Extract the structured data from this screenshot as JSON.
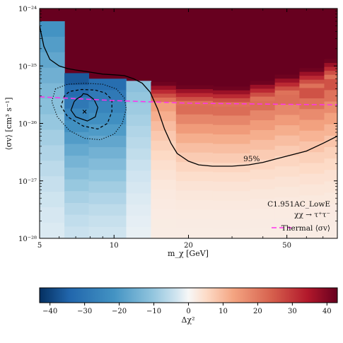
{
  "chart_data": [
    {
      "type": "heatmap",
      "title": "",
      "xlabel": "m_χ [GeV]",
      "ylabel": "⟨σv⟩ [cm³ s⁻¹]",
      "xscale": "log",
      "yscale": "log",
      "xlim": [
        5,
        80
      ],
      "ylim": [
        1e-28,
        1e-24
      ],
      "x_tick_labels": [
        "5",
        "10",
        "20",
        "50"
      ],
      "x_ticks": [
        5,
        10,
        20,
        50
      ],
      "y_tick_labels": [
        "10⁻²⁸",
        "10⁻²⁷",
        "10⁻²⁶",
        "10⁻²⁵",
        "10⁻²⁴"
      ],
      "y_ticks": [
        1e-28,
        1e-27,
        1e-26,
        1e-25,
        1e-24
      ],
      "grid": false,
      "mass_bins": [
        5,
        6.3,
        7.9,
        10,
        11.2,
        13.5,
        14.1,
        17.8,
        20,
        22.4,
        25.1,
        28.2,
        31.6,
        35.5,
        39.8,
        44.7,
        50.1,
        56.2,
        63.1,
        70.8,
        80
      ],
      "columns": [
        {
          "x0": 5.0,
          "x1": 6.3,
          "bright_top": 6e-25,
          "value_below": -22,
          "gradient": "blue"
        },
        {
          "x0": 6.3,
          "x1": 7.9,
          "bright_top": 7.5e-26,
          "value_below": -36,
          "gradient": "blue"
        },
        {
          "x0": 7.9,
          "x1": 11.2,
          "bright_top": 6e-26,
          "value_below": -32,
          "gradient": "blue"
        },
        {
          "x0": 11.2,
          "x1": 14.1,
          "bright_top": 5.5e-26,
          "value_below": -12,
          "gradient": "blue"
        },
        {
          "x0": 14.1,
          "x1": 17.8,
          "bright_top": 2.4e-26,
          "value_below": 3,
          "gradient": "red"
        },
        {
          "x0": 17.8,
          "x1": 25.1,
          "bright_top": 2.1e-26,
          "value_below": 5,
          "gradient": "red"
        },
        {
          "x0": 25.1,
          "x1": 35.5,
          "bright_top": 2e-26,
          "value_below": 5,
          "gradient": "red"
        },
        {
          "x0": 35.5,
          "x1": 44.7,
          "bright_top": 2.5e-26,
          "value_below": 5,
          "gradient": "red"
        },
        {
          "x0": 44.7,
          "x1": 56.2,
          "bright_top": 3.2e-26,
          "value_below": 5,
          "gradient": "red"
        },
        {
          "x0": 56.2,
          "x1": 70.8,
          "bright_top": 4.2e-26,
          "value_below": 6,
          "gradient": "red"
        },
        {
          "x0": 70.8,
          "x1": 80,
          "bright_top": 6e-26,
          "value_below": 6,
          "gradient": "red"
        }
      ],
      "limit_95": {
        "label": "95%",
        "x": [
          5.0,
          5.2,
          5.5,
          6.0,
          6.5,
          7.0,
          8.0,
          9.0,
          10.0,
          11.0,
          12.0,
          13.0,
          14.0,
          15.0,
          16.0,
          17.0,
          18.0,
          20.0,
          22.0,
          25.0,
          30.0,
          35.0,
          40.0,
          45.0,
          50.0,
          60.0,
          70.0,
          80.0
        ],
        "y": [
          5e-25,
          2.2e-25,
          1.3e-25,
          1e-25,
          9e-26,
          8.5e-26,
          7.8e-26,
          7.2e-26,
          7e-26,
          6.8e-26,
          6e-26,
          5e-26,
          3.5e-26,
          1.8e-26,
          8e-27,
          4.5e-27,
          3e-27,
          2.2e-27,
          1.9e-27,
          1.8e-27,
          1.8e-27,
          1.9e-27,
          2.1e-27,
          2.4e-27,
          2.7e-27,
          3.3e-27,
          4.5e-27,
          6e-27
        ]
      },
      "thermal": {
        "label": "Thermal ⟨σv⟩",
        "color": "#ff33ee",
        "x": [
          5,
          10,
          20,
          50,
          80
        ],
        "y": [
          2.9e-26,
          2.5e-26,
          2.25e-26,
          2.15e-26,
          2.1e-26
        ]
      },
      "best_fit": {
        "x": 7.6,
        "y": 1.6e-26
      },
      "contours": [
        {
          "style": "solid",
          "x": [
            6.9,
            6.7,
            7.0,
            7.8,
            8.4,
            8.6,
            8.3,
            7.8,
            7.5,
            7.4,
            7.1,
            6.9
          ],
          "y": [
            2.4e-26,
            1.7e-26,
            1.3e-26,
            1.1e-26,
            1.3e-26,
            1.9e-26,
            2.6e-26,
            3.2e-26,
            3.3e-26,
            3e-26,
            2.7e-26,
            2.4e-26
          ]
        },
        {
          "style": "dashed",
          "x": [
            6.3,
            6.1,
            6.5,
            7.5,
            8.6,
            9.4,
            9.8,
            9.8,
            9.2,
            8.4,
            7.4,
            6.6,
            6.3
          ],
          "y": [
            3e-26,
            2e-26,
            1.3e-26,
            9e-27,
            8e-27,
            1e-26,
            1.6e-26,
            2.6e-26,
            3.4e-26,
            3.8e-26,
            3.9e-26,
            3.6e-26,
            3e-26
          ]
        },
        {
          "style": "dotted",
          "x": [
            5.8,
            5.6,
            5.9,
            6.6,
            7.6,
            8.8,
            10.0,
            10.8,
            11.2,
            11.0,
            10.2,
            9.0,
            7.6,
            6.5,
            5.8
          ],
          "y": [
            4e-26,
            2.4e-26,
            1.3e-26,
            7.5e-27,
            5.5e-27,
            5.2e-27,
            6.5e-27,
            1e-26,
            1.8e-26,
            2.8e-26,
            4e-26,
            4.8e-26,
            5e-26,
            4.8e-26,
            4e-26
          ]
        }
      ],
      "annotation": {
        "dataset": "C1.951AC_LowE",
        "channel": "χχ → τ⁺τ⁻"
      },
      "legend_position": "lower-right"
    },
    {
      "type": "colorbar",
      "label": "Δχ²",
      "range": [
        -43,
        43
      ],
      "ticks": [
        -40,
        -30,
        -20,
        -10,
        0,
        10,
        20,
        30,
        40
      ],
      "tick_labels": [
        "−40",
        "−30",
        "−20",
        "−10",
        "0",
        "10",
        "20",
        "30",
        "40"
      ],
      "colormap": "RdBu_r"
    }
  ]
}
